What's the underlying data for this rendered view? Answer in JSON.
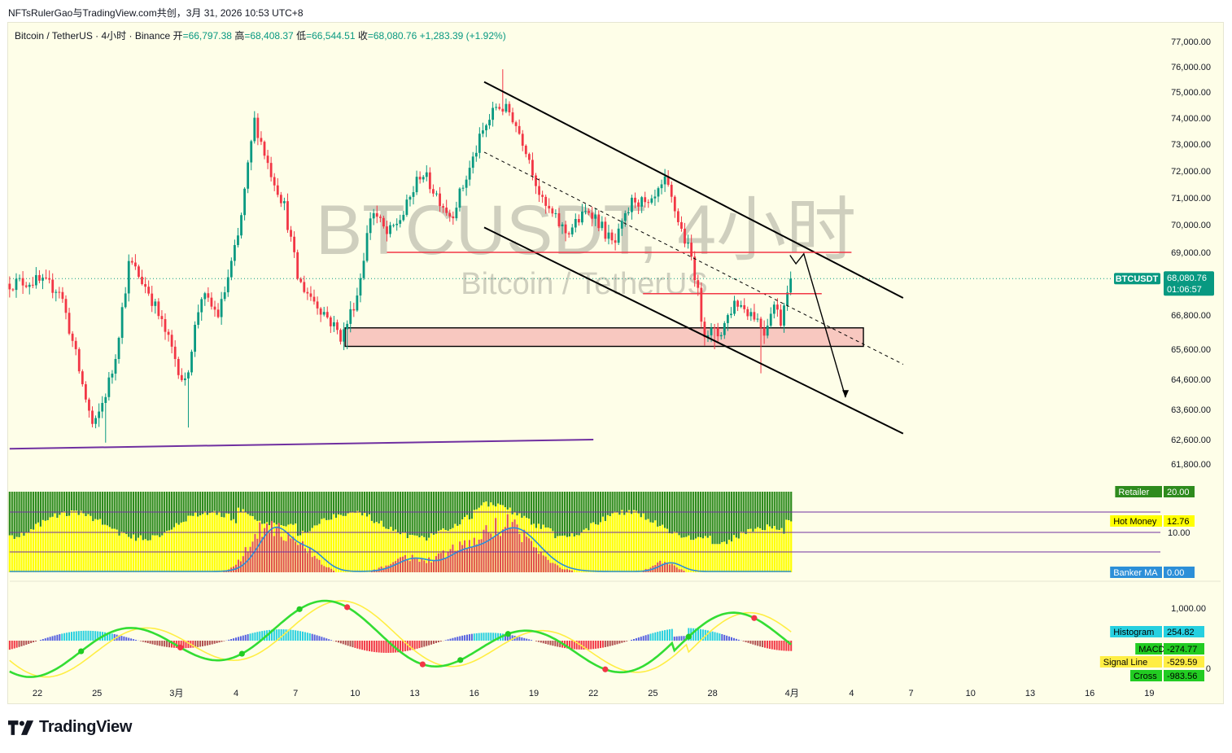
{
  "header": {
    "text": "NFTsRulerGao与TradingView.com共创，3月 31, 2026 10:53 UTC+8"
  },
  "legend": {
    "symbol": "Bitcoin / TetherUS · 4小时 · Binance",
    "open_label": "开",
    "open": "=66,797.38",
    "high_label": "高",
    "high": "=68,408.37",
    "low_label": "低",
    "low": "=66,544.51",
    "close_label": "收",
    "close": "=68,080.76",
    "change": "+1,283.39 (+1.92%)"
  },
  "watermark": {
    "main": "BTCUSDT, 4小时",
    "sub": "Bitcoin / TetherUS"
  },
  "colors": {
    "up": "#089981",
    "down": "#f23645",
    "channel": "#000000",
    "zone_fill": "#f8c8c0",
    "level": "#f23645",
    "baseline": "#7030a0",
    "tag_bg": "#089981",
    "retail": "#2e8b1e",
    "hot_money": "#ffff00",
    "banker": "#e05050",
    "banker_ma": "#2c8fd8",
    "macd_line": "#33dd33",
    "signal_line": "#ffee44"
  },
  "price_tag": {
    "symbol": "BTCUSDT",
    "price": "68,080.76",
    "countdown": "01:06:57"
  },
  "chart_data": [
    {
      "type": "candlestick",
      "pane": "price",
      "xlabel": "",
      "ylabel": "",
      "ylim": [
        61500,
        77400
      ],
      "y_ticks": [
        {
          "v": 77000,
          "l": "77,000.00"
        },
        {
          "v": 76000,
          "l": "76,000.00"
        },
        {
          "v": 75000,
          "l": "75,000.00"
        },
        {
          "v": 74000,
          "l": "74,000.00"
        },
        {
          "v": 73000,
          "l": "73,000.00"
        },
        {
          "v": 72000,
          "l": "72,000.00"
        },
        {
          "v": 71000,
          "l": "71,000.00"
        },
        {
          "v": 70000,
          "l": "70,000.00"
        },
        {
          "v": 69000,
          "l": "69,000.00"
        },
        {
          "v": 66800,
          "l": "66,800.00"
        },
        {
          "v": 65600,
          "l": "65,600.00"
        },
        {
          "v": 64600,
          "l": "64,600.00"
        },
        {
          "v": 63600,
          "l": "63,600.00"
        },
        {
          "v": 62600,
          "l": "62,600.00"
        },
        {
          "v": 61800,
          "l": "61,800.00"
        }
      ],
      "x_ticks": [
        {
          "d": 0,
          "l": "22"
        },
        {
          "d": 3,
          "l": "25"
        },
        {
          "d": 7,
          "l": "3月"
        },
        {
          "d": 10,
          "l": "4"
        },
        {
          "d": 13,
          "l": "7"
        },
        {
          "d": 16,
          "l": "10"
        },
        {
          "d": 19,
          "l": "13"
        },
        {
          "d": 22,
          "l": "16"
        },
        {
          "d": 25,
          "l": "19"
        },
        {
          "d": 28,
          "l": "22"
        },
        {
          "d": 31,
          "l": "25"
        },
        {
          "d": 34,
          "l": "28"
        },
        {
          "d": 38,
          "l": "4月"
        },
        {
          "d": 41,
          "l": "4"
        },
        {
          "d": 44,
          "l": "7"
        },
        {
          "d": 47,
          "l": "10"
        },
        {
          "d": 50,
          "l": "13"
        },
        {
          "d": 53,
          "l": "16"
        },
        {
          "d": 56,
          "l": "19"
        }
      ],
      "anchors": [
        {
          "d": -1.4,
          "p": 67900
        },
        {
          "d": 0,
          "p": 68000
        },
        {
          "d": 1.3,
          "p": 67700
        },
        {
          "d": 2.4,
          "p": 64500
        },
        {
          "d": 3,
          "p": 62900
        },
        {
          "d": 4,
          "p": 65000
        },
        {
          "d": 4.8,
          "p": 68700
        },
        {
          "d": 5.8,
          "p": 67600
        },
        {
          "d": 6.6,
          "p": 66200
        },
        {
          "d": 7.6,
          "p": 64400
        },
        {
          "d": 8.4,
          "p": 67500
        },
        {
          "d": 9.3,
          "p": 66800
        },
        {
          "d": 10.3,
          "p": 69600
        },
        {
          "d": 11.1,
          "p": 73900
        },
        {
          "d": 11.8,
          "p": 72200
        },
        {
          "d": 12.6,
          "p": 70700
        },
        {
          "d": 13.3,
          "p": 68000
        },
        {
          "d": 14.6,
          "p": 66900
        },
        {
          "d": 15.5,
          "p": 66000
        },
        {
          "d": 16.3,
          "p": 67600
        },
        {
          "d": 17,
          "p": 70600
        },
        {
          "d": 17.8,
          "p": 69600
        },
        {
          "d": 18.6,
          "p": 70400
        },
        {
          "d": 19.5,
          "p": 72000
        },
        {
          "d": 20.2,
          "p": 71200
        },
        {
          "d": 21,
          "p": 70300
        },
        {
          "d": 21.9,
          "p": 72000
        },
        {
          "d": 22.5,
          "p": 73300
        },
        {
          "d": 23.3,
          "p": 74500
        },
        {
          "d": 24,
          "p": 74200
        },
        {
          "d": 24.8,
          "p": 72800
        },
        {
          "d": 25.6,
          "p": 70800
        },
        {
          "d": 26.8,
          "p": 69700
        },
        {
          "d": 28,
          "p": 70600
        },
        {
          "d": 29.2,
          "p": 69200
        },
        {
          "d": 30.2,
          "p": 71000
        },
        {
          "d": 31,
          "p": 70600
        },
        {
          "d": 31.8,
          "p": 71600
        },
        {
          "d": 32.6,
          "p": 69800
        },
        {
          "d": 33.2,
          "p": 68600
        },
        {
          "d": 33.7,
          "p": 66300
        },
        {
          "d": 34.5,
          "p": 66100
        },
        {
          "d": 35.3,
          "p": 67300
        },
        {
          "d": 36.3,
          "p": 66800
        },
        {
          "d": 36.8,
          "p": 66200
        },
        {
          "d": 37.2,
          "p": 67300
        },
        {
          "d": 37.6,
          "p": 66600
        },
        {
          "d": 38,
          "p": 68080
        }
      ],
      "pivots": [
        {
          "d": 3.5,
          "p": 62500
        },
        {
          "d": 7.6,
          "p": 63000
        },
        {
          "d": 11.1,
          "p": 74100
        },
        {
          "d": 15.6,
          "p": 65600
        },
        {
          "d": 23.4,
          "p": 75900
        },
        {
          "d": 34.1,
          "p": 65600
        },
        {
          "d": 36.5,
          "p": 64800
        }
      ],
      "annotations": {
        "channel_upper": [
          [
            22.5,
            75400
          ],
          [
            43.6,
            67400
          ]
        ],
        "channel_lower": [
          [
            22.5,
            69900
          ],
          [
            43.6,
            62800
          ]
        ],
        "channel_mid": [
          [
            22.5,
            72700
          ],
          [
            43.6,
            65100
          ]
        ],
        "support_zone": {
          "d0": 15.5,
          "d1": 41.6,
          "p_top": 66350,
          "p_bot": 65700
        },
        "level_69000": [
          [
            17.6,
            69000
          ],
          [
            41,
            69000
          ]
        ],
        "level_67500": [
          [
            30.5,
            67550
          ],
          [
            39.5,
            67550
          ]
        ],
        "baseline": [
          [
            -1.4,
            62300
          ],
          [
            28,
            62600
          ]
        ],
        "projection": [
          [
            37.9,
            68900
          ],
          [
            38.2,
            68600
          ],
          [
            38.6,
            68950
          ],
          [
            40.7,
            64000
          ]
        ],
        "last_price_line": 68080
      }
    },
    {
      "type": "bar",
      "pane": "banker-retail",
      "legend": [
        {
          "name": "Retailer",
          "value": "20.00"
        },
        {
          "name": "Hot Money",
          "value": "12.76"
        },
        {
          "name": "Banker MA",
          "value": "0.00"
        }
      ],
      "hlines": [
        20,
        10
      ],
      "hline_labels": [
        {
          "v": 10,
          "l": "10.00"
        }
      ],
      "ylim": [
        0,
        20
      ]
    },
    {
      "type": "line",
      "pane": "macd",
      "legend": [
        {
          "name": "Histogram",
          "value": "254.82"
        },
        {
          "name": "MACD",
          "value": "-274.77"
        },
        {
          "name": "Signal Line",
          "value": "-529.59"
        },
        {
          "name": "Cross",
          "value": "-983.56"
        }
      ],
      "y_ticks": [
        {
          "v": 1000,
          "l": "1,000.00"
        },
        {
          "v": 0,
          "l": "0"
        }
      ]
    }
  ]
}
